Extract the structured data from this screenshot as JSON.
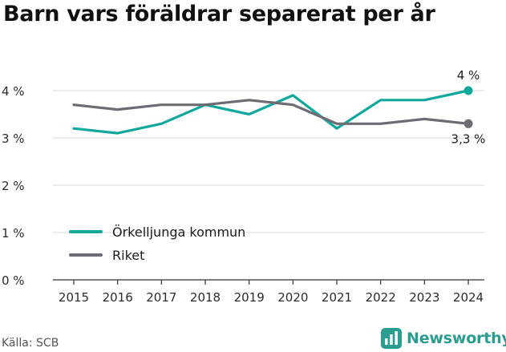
{
  "header": {
    "title": "Barn vars föräldrar separerat per år"
  },
  "footer": {
    "source": "Källa: SCB",
    "brand": "Newsworthy"
  },
  "colors": {
    "primary": "#14a89c",
    "secondary": "#6d6c72",
    "grid": "#d9d9d9",
    "brand": "#2a9d8f"
  },
  "chart_data": {
    "type": "line",
    "title": "Barn vars föräldrar separerat per år",
    "xlabel": "",
    "ylabel": "",
    "x": [
      2015,
      2016,
      2017,
      2018,
      2019,
      2020,
      2021,
      2022,
      2023,
      2024
    ],
    "ylim": [
      0,
      4
    ],
    "yticks": [
      0,
      1,
      2,
      3,
      4
    ],
    "ytick_labels": [
      "0 %",
      "1 %",
      "2 %",
      "3 %",
      "4 %"
    ],
    "grid": "horizontal",
    "legend_placement": "bottom-left",
    "series": [
      {
        "name": "Örkelljunga kommun",
        "color": "#14a89c",
        "values": [
          3.2,
          3.1,
          3.3,
          3.7,
          3.5,
          3.9,
          3.2,
          3.8,
          3.8,
          4.0
        ],
        "end_label": "4 %"
      },
      {
        "name": "Riket",
        "color": "#6d6c72",
        "values": [
          3.7,
          3.6,
          3.7,
          3.7,
          3.8,
          3.7,
          3.3,
          3.3,
          3.4,
          3.3
        ],
        "end_label": "3,3 %"
      }
    ]
  }
}
